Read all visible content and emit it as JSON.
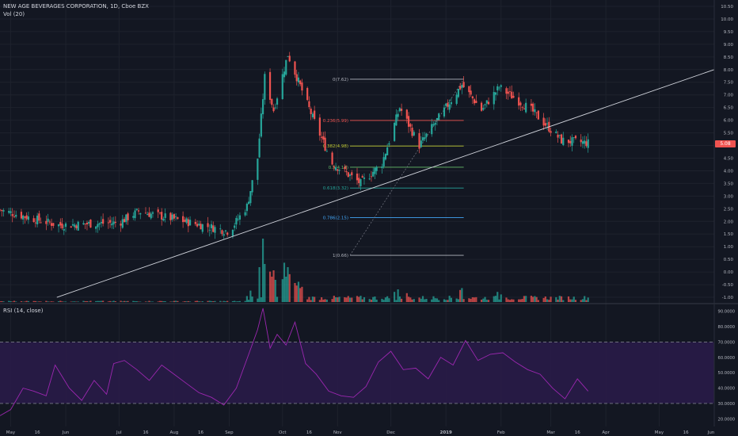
{
  "header": {
    "symbol_line": "NEW AGE BEVERAGES CORPORATION, 1D, Cboe BZX",
    "volume_indicator": "Vol (20)",
    "rsi_indicator": "RSI (14, close)"
  },
  "last_price_tag": "5.08",
  "colors": {
    "background": "#131722",
    "up": "#26a69a",
    "down": "#ef5350",
    "rsi_line": "#9c27b0",
    "rsi_band": "#2a1b4a",
    "trendline": "#d1d4dc"
  },
  "chart_data": [
    {
      "type": "candlestick",
      "title": "NEW AGE BEVERAGES CORPORATION, 1D, Cboe BZX",
      "price_axis": {
        "ticks": [
          "10.50",
          "10.00",
          "9.50",
          "9.00",
          "8.50",
          "8.00",
          "7.50",
          "7.00",
          "6.50",
          "6.00",
          "5.50",
          "5.00",
          "4.50",
          "4.00",
          "3.50",
          "3.00",
          "2.50",
          "2.00",
          "1.50",
          "1.00",
          "0.50",
          "0.00",
          "-0.50",
          "-1.00"
        ],
        "range": [
          -1.25,
          10.75
        ]
      },
      "time_axis": {
        "ticks": [
          "May",
          "16",
          "Jun",
          "Jul",
          "16",
          "Aug",
          "16",
          "Sep",
          "Oct",
          "16",
          "Nov",
          "Dec",
          "2019",
          "Feb",
          "Mar",
          "16",
          "Apr",
          "May",
          "16",
          "Jun"
        ],
        "range": [
          "2018-04-25",
          "2019-06-01"
        ]
      },
      "segments": [
        {
          "from": "2018-04-25",
          "to": "2018-05-28",
          "start": 2.45,
          "end": 1.85
        },
        {
          "from": "2018-05-28",
          "to": "2018-07-01",
          "start": 1.85,
          "end": 1.95
        },
        {
          "from": "2018-07-01",
          "to": "2018-07-12",
          "start": 1.95,
          "end": 2.4
        },
        {
          "from": "2018-07-12",
          "to": "2018-08-20",
          "start": 2.4,
          "end": 1.8
        },
        {
          "from": "2018-08-20",
          "to": "2018-09-01",
          "start": 1.8,
          "end": 1.6
        },
        {
          "from": "2018-09-01",
          "to": "2018-09-11",
          "start": 1.6,
          "end": 2.6
        },
        {
          "from": "2018-09-11",
          "to": "2018-09-17",
          "start": 2.6,
          "end": 4.5
        },
        {
          "from": "2018-09-17",
          "to": "2018-09-21",
          "start": 4.5,
          "end": 7.7
        },
        {
          "from": "2018-09-21",
          "to": "2018-09-26",
          "start": 7.7,
          "end": 6.4
        },
        {
          "from": "2018-09-26",
          "to": "2018-10-04",
          "start": 6.4,
          "end": 8.6
        },
        {
          "from": "2018-10-04",
          "to": "2018-10-18",
          "start": 8.6,
          "end": 6.1
        },
        {
          "from": "2018-10-18",
          "to": "2018-10-29",
          "start": 6.1,
          "end": 4.3
        },
        {
          "from": "2018-10-29",
          "to": "2018-11-14",
          "start": 4.3,
          "end": 3.5
        },
        {
          "from": "2018-11-14",
          "to": "2018-11-26",
          "start": 3.5,
          "end": 4.3
        },
        {
          "from": "2018-11-26",
          "to": "2018-12-06",
          "start": 4.3,
          "end": 6.5
        },
        {
          "from": "2018-12-06",
          "to": "2018-12-17",
          "start": 6.5,
          "end": 5.0
        },
        {
          "from": "2018-12-17",
          "to": "2019-01-10",
          "start": 5.0,
          "end": 7.4
        },
        {
          "from": "2019-01-10",
          "to": "2019-01-21",
          "start": 7.4,
          "end": 6.4
        },
        {
          "from": "2019-01-21",
          "to": "2019-01-31",
          "start": 6.4,
          "end": 7.3
        },
        {
          "from": "2019-01-31",
          "to": "2019-02-18",
          "start": 7.3,
          "end": 6.4
        },
        {
          "from": "2019-02-18",
          "to": "2019-03-07",
          "start": 6.4,
          "end": 5.2
        },
        {
          "from": "2019-03-07",
          "to": "2019-03-22",
          "start": 5.2,
          "end": 5.1
        }
      ],
      "volume_spikes": [
        {
          "date": "2018-09-13",
          "pct": 0.18
        },
        {
          "date": "2018-09-18",
          "pct": 0.55
        },
        {
          "date": "2018-09-20",
          "pct": 1.0
        },
        {
          "date": "2018-09-21",
          "pct": 0.6
        },
        {
          "date": "2018-09-24",
          "pct": 0.48
        },
        {
          "date": "2018-09-25",
          "pct": 0.4
        },
        {
          "date": "2018-09-26",
          "pct": 0.5
        },
        {
          "date": "2018-09-27",
          "pct": 0.35
        },
        {
          "date": "2018-10-01",
          "pct": 0.36
        },
        {
          "date": "2018-10-02",
          "pct": 0.62
        },
        {
          "date": "2018-10-03",
          "pct": 0.4
        },
        {
          "date": "2018-10-04",
          "pct": 0.55
        },
        {
          "date": "2018-10-05",
          "pct": 0.44
        },
        {
          "date": "2018-10-08",
          "pct": 0.3
        },
        {
          "date": "2018-10-09",
          "pct": 0.26
        },
        {
          "date": "2018-10-10",
          "pct": 0.32
        },
        {
          "date": "2018-10-11",
          "pct": 0.22
        },
        {
          "date": "2018-10-12",
          "pct": 0.24
        },
        {
          "date": "2018-12-03",
          "pct": 0.16
        },
        {
          "date": "2018-12-05",
          "pct": 0.2
        },
        {
          "date": "2018-12-10",
          "pct": 0.14
        },
        {
          "date": "2019-01-09",
          "pct": 0.19
        },
        {
          "date": "2019-01-10",
          "pct": 0.22
        },
        {
          "date": "2019-01-30",
          "pct": 0.16
        },
        {
          "date": "2019-02-01",
          "pct": 0.12
        }
      ],
      "trendline": {
        "from": {
          "date": "2018-05-27",
          "value": -1.0
        },
        "to": {
          "date": "2019-06-01",
          "value": 8.0
        }
      },
      "fibonacci": {
        "from": "2018-11-08",
        "to": "2019-01-11",
        "levels": [
          {
            "ratio": 0,
            "value": 7.62,
            "label": "0(7.62)",
            "color": "#b2b5be"
          },
          {
            "ratio": 0.236,
            "value": 5.99,
            "label": "0.236(5.99)",
            "color": "#ef5350"
          },
          {
            "ratio": 0.382,
            "value": 4.98,
            "label": "0.382(4.98)",
            "color": "#c0ca33"
          },
          {
            "ratio": 0.5,
            "value": 4.14,
            "label": "0.5(4.14)",
            "color": "#66bb6a"
          },
          {
            "ratio": 0.618,
            "value": 3.32,
            "label": "0.618(3.32)",
            "color": "#26a69a"
          },
          {
            "ratio": 0.786,
            "value": 2.15,
            "label": "0.786(2.15)",
            "color": "#42a5f5"
          },
          {
            "ratio": 1,
            "value": 0.66,
            "label": "1(0.66)",
            "color": "#b2b5be"
          }
        ]
      }
    },
    {
      "type": "line",
      "title": "RSI (14, close)",
      "y_axis": {
        "ticks": [
          "90.0000",
          "80.0000",
          "70.0000",
          "60.0000",
          "50.0000",
          "40.0000",
          "30.0000",
          "20.0000"
        ],
        "range": [
          15,
          95
        ]
      },
      "band": [
        30,
        70
      ],
      "series": [
        {
          "x": [
            "2018-04-25",
            "2018-05-01",
            "2018-05-08",
            "2018-05-14",
            "2018-05-21",
            "2018-05-26",
            "2018-06-03",
            "2018-06-10",
            "2018-06-17",
            "2018-06-24",
            "2018-06-28",
            "2018-07-04",
            "2018-07-11",
            "2018-07-18",
            "2018-07-25",
            "2018-08-01",
            "2018-08-08",
            "2018-08-15",
            "2018-08-22",
            "2018-08-29",
            "2018-09-05",
            "2018-09-12",
            "2018-09-17",
            "2018-09-20",
            "2018-09-24",
            "2018-09-28",
            "2018-10-03",
            "2018-10-08",
            "2018-10-14",
            "2018-10-20",
            "2018-10-27",
            "2018-11-03",
            "2018-11-10",
            "2018-11-17",
            "2018-11-24",
            "2018-12-01",
            "2018-12-08",
            "2018-12-15",
            "2018-12-22",
            "2018-12-29",
            "2019-01-05",
            "2019-01-12",
            "2019-01-19",
            "2019-01-26",
            "2019-02-02",
            "2019-02-09",
            "2019-02-16",
            "2019-02-23",
            "2019-03-02",
            "2019-03-09",
            "2019-03-16",
            "2019-03-22"
          ],
          "values": [
            22,
            26,
            40,
            38,
            35,
            55,
            40,
            32,
            45,
            36,
            56,
            58,
            52,
            45,
            55,
            49,
            43,
            37,
            34,
            29,
            40,
            62,
            78,
            92,
            66,
            75,
            68,
            83,
            56,
            49,
            38,
            35,
            34,
            41,
            57,
            64,
            52,
            53,
            46,
            60,
            55,
            71,
            58,
            62,
            63,
            57,
            52,
            49,
            40,
            33,
            46,
            38
          ]
        }
      ]
    }
  ]
}
